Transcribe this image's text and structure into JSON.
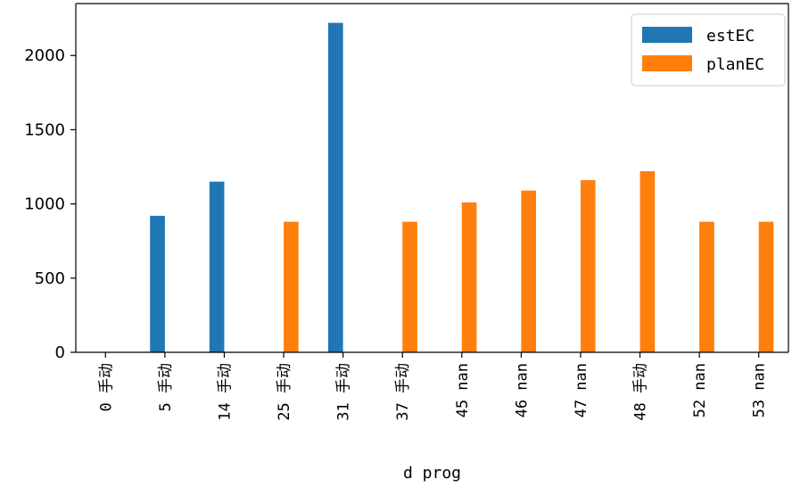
{
  "chart_data": {
    "type": "bar",
    "title": "",
    "xlabel": "d prog",
    "ylabel": "",
    "categories": [
      "0 手动",
      "5 手动",
      "14 手动",
      "25 手动",
      "31 手动",
      "37 手动",
      "45 nan",
      "46 nan",
      "47 nan",
      "48 手动",
      "52 nan",
      "53 nan"
    ],
    "series": [
      {
        "name": "estEC",
        "color": "#1f77b4",
        "values": [
          0,
          920,
          1150,
          0,
          2220,
          0,
          0,
          0,
          0,
          0,
          0,
          0
        ]
      },
      {
        "name": "planEC",
        "color": "#ff7f0e",
        "values": [
          0,
          0,
          0,
          880,
          0,
          880,
          1010,
          1090,
          1160,
          1220,
          880,
          880
        ]
      }
    ],
    "ylim": [
      0,
      2350
    ],
    "yticks": [
      0,
      500,
      1000,
      1500,
      2000
    ],
    "legend_position": "top-right",
    "grid": false
  }
}
